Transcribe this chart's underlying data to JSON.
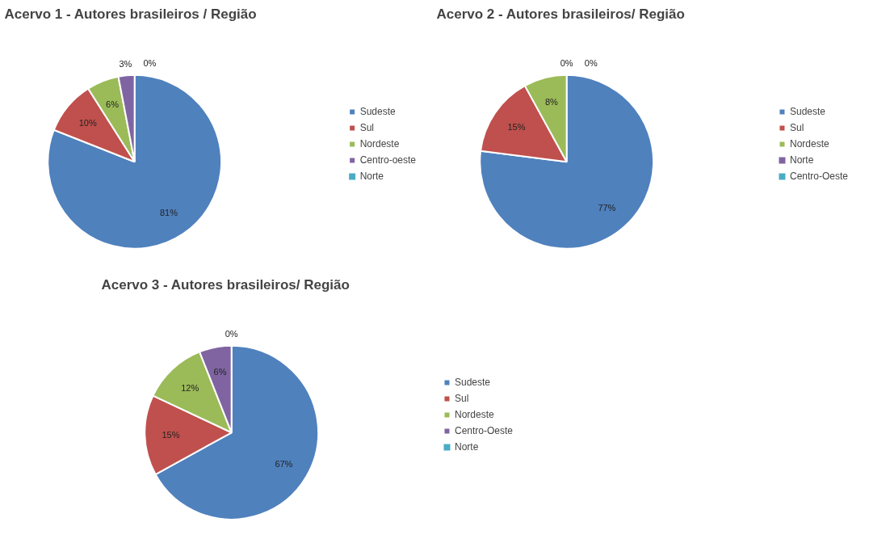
{
  "chart_data": [
    {
      "type": "pie",
      "title": "Acervo 1 - Autores brasileiros / Região",
      "categories": [
        "Sudeste",
        "Sul",
        "Nordeste",
        "Centro-oeste",
        "Norte"
      ],
      "values": [
        81,
        10,
        6,
        3,
        0
      ],
      "colors": [
        "#4f81bd",
        "#c0504d",
        "#9bbb59",
        "#8064a2",
        "#4bacc6"
      ],
      "value_labels": [
        "81%",
        "10%",
        "6%",
        "3%",
        "0%"
      ],
      "legend": "right"
    },
    {
      "type": "pie",
      "title": "Acervo 2 - Autores brasileiros/ Região",
      "categories": [
        "Sudeste",
        "Sul",
        "Nordeste",
        "Norte",
        "Centro-Oeste"
      ],
      "values": [
        77,
        15,
        8,
        0,
        0
      ],
      "colors": [
        "#4f81bd",
        "#c0504d",
        "#9bbb59",
        "#8064a2",
        "#4bacc6"
      ],
      "value_labels": [
        "77%",
        "15%",
        "8%",
        "0%",
        "0%"
      ],
      "legend": "right"
    },
    {
      "type": "pie",
      "title": "Acervo 3 - Autores brasileiros/ Região",
      "categories": [
        "Sudeste",
        "Sul",
        "Nordeste",
        "Centro-Oeste",
        "Norte"
      ],
      "values": [
        67,
        15,
        12,
        6,
        0
      ],
      "colors": [
        "#4f81bd",
        "#c0504d",
        "#9bbb59",
        "#8064a2",
        "#4bacc6"
      ],
      "value_labels": [
        "67%",
        "15%",
        "12%",
        "6%",
        "0%"
      ],
      "legend": "right"
    }
  ]
}
